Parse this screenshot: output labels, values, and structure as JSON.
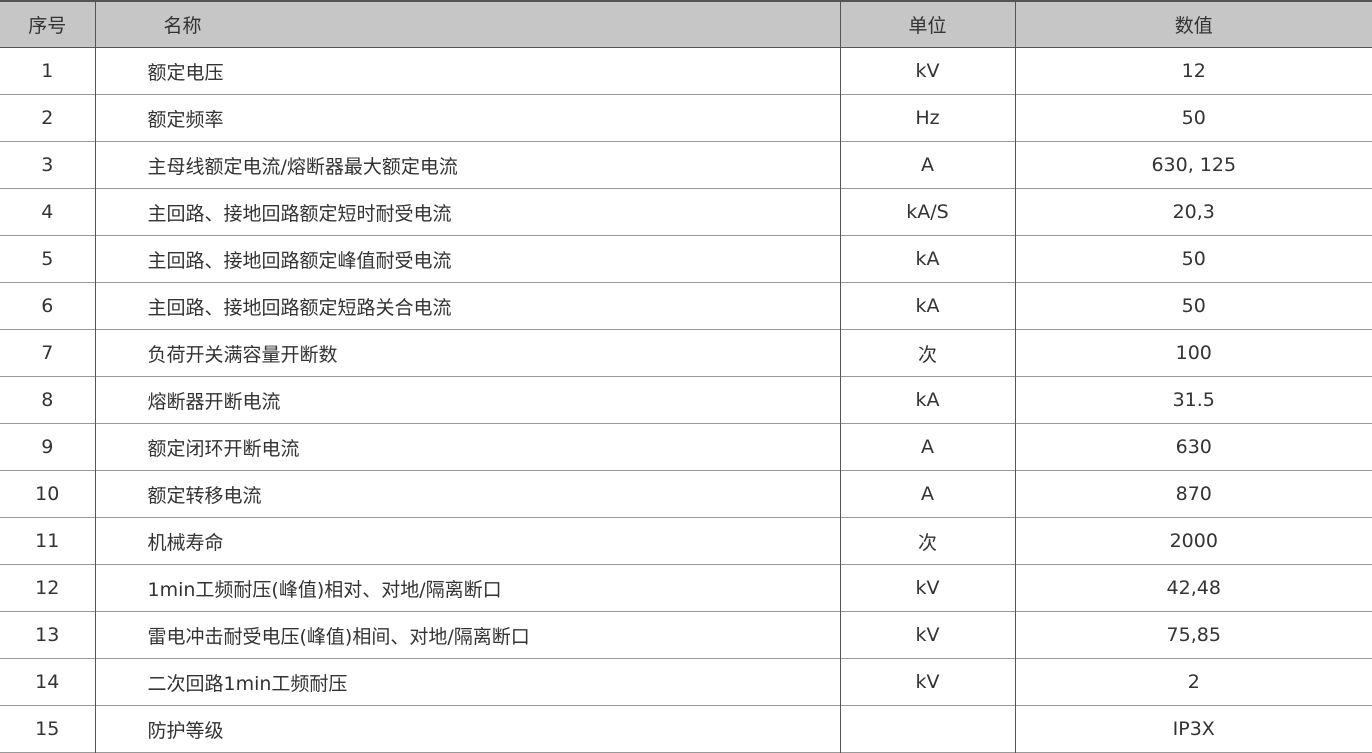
{
  "headers": {
    "no": "序号",
    "name": "名称",
    "unit": "单位",
    "value": "数值"
  },
  "rows": [
    {
      "no": "1",
      "name": "额定电压",
      "unit": "kV",
      "value": "12"
    },
    {
      "no": "2",
      "name": "额定频率",
      "unit": "Hz",
      "value": "50"
    },
    {
      "no": "3",
      "name": "主母线额定电流/熔断器最大额定电流",
      "unit": "A",
      "value": "630, 125"
    },
    {
      "no": "4",
      "name": "主回路、接地回路额定短时耐受电流",
      "unit": "kA/S",
      "value": "20,3"
    },
    {
      "no": "5",
      "name": "主回路、接地回路额定峰值耐受电流",
      "unit": "kA",
      "value": "50"
    },
    {
      "no": "6",
      "name": "主回路、接地回路额定短路关合电流",
      "unit": "kA",
      "value": "50"
    },
    {
      "no": "7",
      "name": "负荷开关满容量开断数",
      "unit": "次",
      "value": "100"
    },
    {
      "no": "8",
      "name": "熔断器开断电流",
      "unit": "kA",
      "value": "31.5"
    },
    {
      "no": "9",
      "name": "额定闭环开断电流",
      "unit": "A",
      "value": "630"
    },
    {
      "no": "10",
      "name": "额定转移电流",
      "unit": "A",
      "value": "870"
    },
    {
      "no": "11",
      "name": "机械寿命",
      "unit": "次",
      "value": "2000"
    },
    {
      "no": "12",
      "name": "1min工频耐压(峰值)相对、对地/隔离断口",
      "unit": "kV",
      "value": "42,48"
    },
    {
      "no": "13",
      "name": "雷电冲击耐受电压(峰值)相间、对地/隔离断口",
      "unit": "kV",
      "value": "75,85"
    },
    {
      "no": "14",
      "name": "二次回路1min工频耐压",
      "unit": "kV",
      "value": "2"
    },
    {
      "no": "15",
      "name": "防护等级",
      "unit": "",
      "value": "IP3X"
    }
  ]
}
